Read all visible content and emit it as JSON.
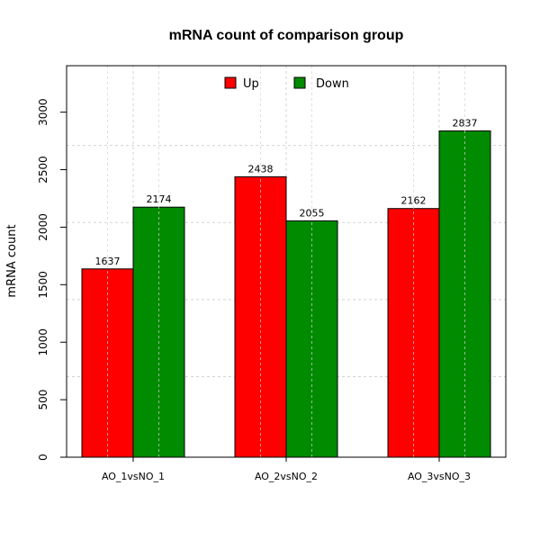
{
  "chart_data": {
    "type": "bar",
    "title": "mRNA count of comparison group",
    "xlabel": "",
    "ylabel": "mRNA count",
    "categories": [
      "AO_1vsNO_1",
      "AO_2vsNO_2",
      "AO_3vsNO_3"
    ],
    "series": [
      {
        "name": "Up",
        "color": "#ff0000",
        "values": [
          1637,
          2438,
          2162
        ]
      },
      {
        "name": "Down",
        "color": "#008b00",
        "values": [
          2174,
          2055,
          2837
        ]
      }
    ],
    "ylim": [
      0,
      3404
    ],
    "yticks": [
      0,
      500,
      1000,
      1500,
      2000,
      2500,
      3000
    ],
    "grid": true,
    "legend_position": "top-center"
  }
}
